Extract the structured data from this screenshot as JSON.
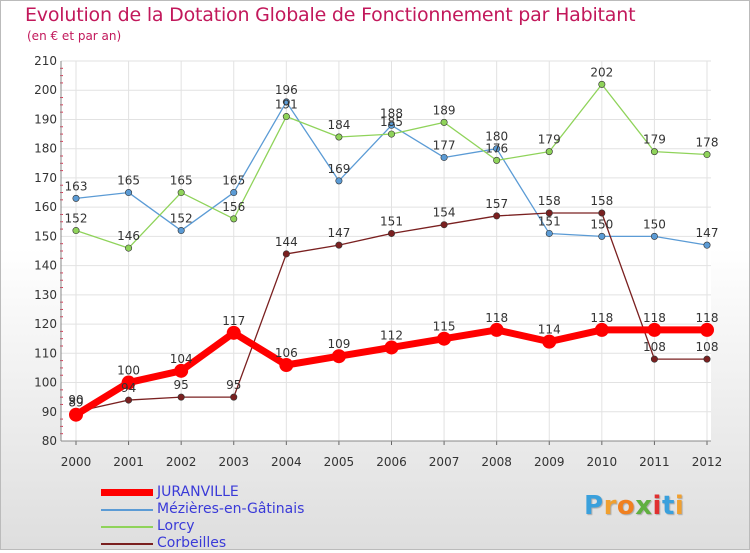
{
  "chart_data": {
    "type": "line",
    "title": "Evolution de la Dotation Globale de Fonctionnement par Habitant",
    "subtitle": "(en € et par an)",
    "xlabel": "",
    "ylabel": "",
    "x": [
      "2000",
      "2001",
      "2002",
      "2003",
      "2004",
      "2005",
      "2006",
      "2007",
      "2008",
      "2009",
      "2010",
      "2011",
      "2012"
    ],
    "ylim": [
      80,
      210
    ],
    "yticks": [
      80,
      90,
      100,
      110,
      120,
      130,
      140,
      150,
      160,
      170,
      180,
      190,
      200,
      210
    ],
    "grid": true,
    "legend_position": "bottom-left",
    "series": [
      {
        "name": "JURANVILLE",
        "color": "#ff0000",
        "values": [
          89,
          100,
          104,
          117,
          106,
          109,
          112,
          115,
          118,
          114,
          118,
          118,
          118
        ]
      },
      {
        "name": "Mézières-en-Gâtinais",
        "color": "#5b9bd5",
        "values": [
          163,
          165,
          152,
          165,
          196,
          169,
          188,
          177,
          180,
          151,
          150,
          150,
          147
        ]
      },
      {
        "name": "Lorcy",
        "color": "#8fd35a",
        "values": [
          152,
          146,
          165,
          156,
          191,
          184,
          185,
          189,
          176,
          179,
          202,
          179,
          178
        ]
      },
      {
        "name": "Corbeilles",
        "color": "#7a2020",
        "values": [
          90,
          94,
          95,
          95,
          144,
          147,
          151,
          154,
          157,
          158,
          158,
          108,
          108
        ]
      }
    ]
  },
  "logo": {
    "letters": [
      "P",
      "r",
      "o",
      "x",
      "i",
      "t",
      "i"
    ],
    "colors": [
      "#3aa0dc",
      "#f0a030",
      "#f08020",
      "#60b040",
      "#e03030",
      "#3aa0dc",
      "#f0a030"
    ]
  }
}
